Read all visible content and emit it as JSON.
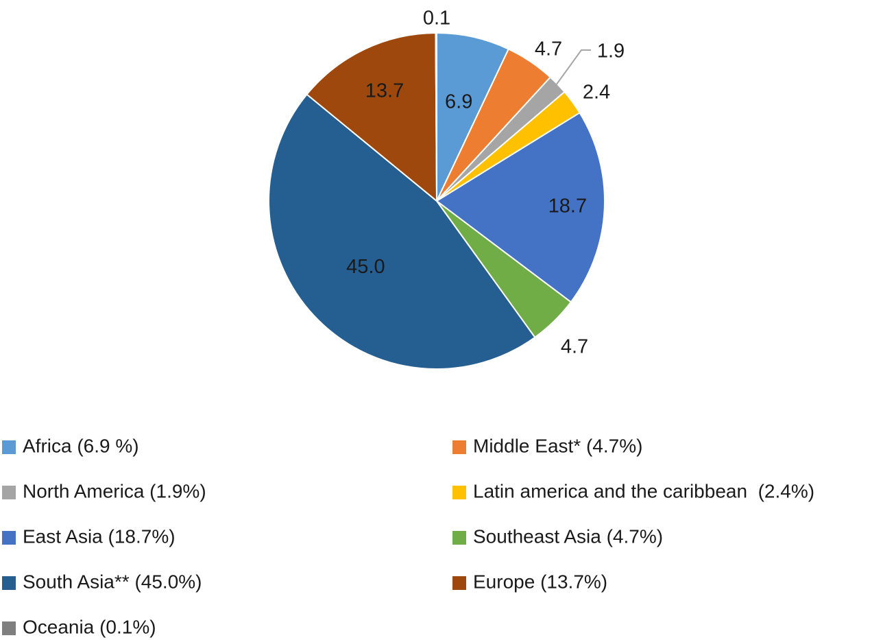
{
  "chart_data": {
    "type": "pie",
    "title": "",
    "slices": [
      {
        "label": "Africa",
        "value": 6.9,
        "display": "6.9",
        "color": "#5B9BD5",
        "legend": "Africa (6.9 %)"
      },
      {
        "label": "Middle East*",
        "value": 4.7,
        "display": "4.7",
        "color": "#ED7D31",
        "legend": "Middle East* (4.7%)"
      },
      {
        "label": "North America",
        "value": 1.9,
        "display": "1.9",
        "color": "#A5A5A5",
        "legend": "North America (1.9%)"
      },
      {
        "label": "Latin america and the caribbean",
        "value": 2.4,
        "display": "2.4",
        "color": "#FFC000",
        "legend": "Latin america and the caribbean  (2.4%)"
      },
      {
        "label": "East Asia",
        "value": 18.7,
        "display": "18.7",
        "color": "#4472C4",
        "legend": "East Asia (18.7%)"
      },
      {
        "label": "Southeast Asia",
        "value": 4.7,
        "display": "4.7",
        "color": "#70AD47",
        "legend": "Southeast Asia (4.7%)"
      },
      {
        "label": "South Asia**",
        "value": 45.0,
        "display": "45.0",
        "color": "#255E91",
        "legend": "South Asia** (45.0%)"
      },
      {
        "label": "Europe",
        "value": 13.7,
        "display": "13.7",
        "color": "#9E480E",
        "legend": "Europe (13.7%)"
      },
      {
        "label": "Oceania",
        "value": 0.1,
        "display": "0.1",
        "color": "#7F7F7F",
        "legend": "Oceania (0.1%)"
      }
    ],
    "legend_position": "bottom"
  }
}
